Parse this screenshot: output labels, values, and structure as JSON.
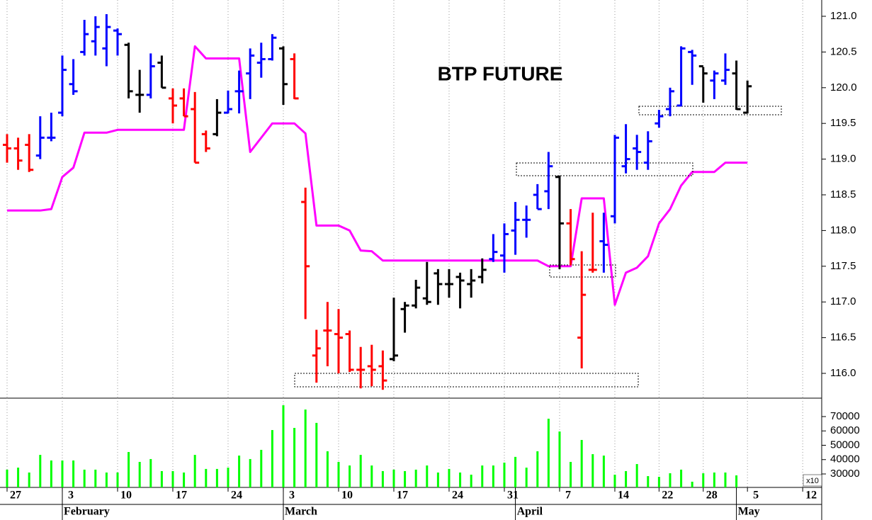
{
  "chart_data": [
    {
      "type": "ohlc",
      "title": "BTP FUTURE",
      "x": [
        0,
        1,
        2,
        3,
        4,
        5,
        6,
        7,
        8,
        9,
        10,
        11,
        12,
        13,
        14,
        15,
        16,
        17,
        18,
        19,
        20,
        21,
        22,
        23,
        24,
        25,
        26,
        27,
        28,
        29,
        30,
        31,
        32,
        33,
        34,
        35,
        36,
        37,
        38,
        39,
        40,
        41,
        42,
        43,
        44,
        45,
        46,
        47,
        48,
        49,
        50,
        51,
        52,
        53,
        54,
        55,
        56,
        57,
        58,
        59,
        60,
        61,
        62,
        63,
        64,
        65,
        66,
        67
      ],
      "open": [
        119.2,
        119.15,
        119.2,
        119.05,
        119.3,
        119.65,
        120.05,
        120.5,
        120.65,
        120.55,
        120.8,
        120.6,
        119.9,
        119.9,
        120.35,
        119.85,
        119.85,
        119.7,
        119.35,
        119.35,
        119.65,
        119.95,
        120.2,
        120.35,
        120.4,
        120.55,
        120.4,
        118.4,
        116.25,
        116.6,
        116.55,
        116.55,
        116.05,
        116.1,
        116.1,
        116.2,
        116.9,
        116.95,
        117.05,
        117.4,
        117.25,
        117.35,
        117.25,
        117.35,
        117.6,
        117.65,
        118.0,
        118.15,
        118.5,
        118.55,
        118.75,
        118.1,
        116.5,
        117.45,
        117.85,
        118.2,
        118.9,
        119.15,
        118.95,
        119.5,
        119.7,
        119.75,
        120.5,
        120.3,
        120.1,
        120.1,
        120.2,
        119.65
      ],
      "high": [
        119.35,
        119.3,
        119.35,
        119.6,
        119.65,
        120.45,
        120.4,
        120.95,
        121.0,
        121.03,
        120.83,
        120.63,
        120.25,
        120.48,
        120.45,
        119.99,
        119.99,
        119.94,
        119.4,
        119.84,
        119.96,
        120.24,
        120.55,
        120.63,
        120.75,
        120.58,
        120.48,
        118.6,
        116.61,
        117.0,
        116.9,
        116.6,
        116.37,
        116.4,
        116.32,
        117.06,
        117.0,
        117.31,
        117.56,
        117.46,
        117.46,
        117.41,
        117.46,
        117.61,
        117.95,
        118.1,
        118.4,
        118.35,
        118.65,
        119.1,
        118.77,
        118.3,
        117.71,
        118.25,
        118.25,
        119.34,
        119.49,
        119.34,
        119.39,
        119.69,
        120.0,
        120.58,
        120.53,
        120.29,
        120.24,
        120.48,
        120.38,
        120.1
      ],
      "low": [
        118.95,
        118.85,
        118.82,
        119.0,
        119.25,
        119.6,
        119.9,
        120.45,
        120.45,
        120.3,
        120.45,
        119.85,
        119.65,
        119.85,
        120.0,
        119.5,
        119.6,
        118.95,
        119.1,
        119.32,
        119.64,
        119.64,
        119.84,
        120.14,
        120.38,
        119.76,
        119.84,
        116.76,
        115.87,
        116.1,
        116.0,
        116.02,
        115.79,
        115.82,
        115.77,
        116.17,
        116.57,
        116.91,
        116.96,
        116.96,
        117.06,
        116.91,
        117.06,
        117.26,
        117.56,
        117.41,
        117.66,
        117.9,
        118.3,
        118.3,
        117.46,
        117.51,
        116.07,
        117.41,
        117.41,
        118.1,
        118.8,
        118.85,
        118.85,
        119.44,
        119.6,
        119.74,
        120.04,
        119.79,
        119.84,
        120.04,
        119.69,
        119.64
      ],
      "close": [
        119.15,
        118.98,
        118.85,
        119.3,
        119.3,
        120.25,
        119.95,
        120.75,
        120.85,
        120.85,
        120.75,
        119.95,
        119.9,
        120.3,
        120.0,
        119.75,
        119.6,
        118.95,
        119.15,
        119.65,
        119.7,
        119.95,
        120.45,
        120.4,
        120.7,
        120.05,
        119.85,
        117.5,
        116.35,
        116.6,
        116.5,
        116.05,
        116.05,
        116.05,
        115.9,
        116.25,
        116.95,
        117.2,
        117.0,
        117.25,
        117.25,
        117.3,
        117.3,
        117.45,
        117.7,
        117.95,
        118.15,
        118.15,
        118.3,
        118.9,
        118.1,
        117.6,
        117.1,
        117.45,
        117.8,
        119.3,
        119.0,
        119.1,
        119.25,
        119.6,
        119.95,
        120.55,
        120.45,
        120.2,
        120.2,
        120.25,
        119.7,
        120.02
      ],
      "colors": [
        "#ff0000",
        "#ff0000",
        "#ff0000",
        "#0000ff",
        "#0000ff",
        "#0000ff",
        "#0000ff",
        "#0000ff",
        "#0000ff",
        "#0000ff",
        "#0000ff",
        "#000000",
        "#000000",
        "#0000ff",
        "#000000",
        "#ff0000",
        "#ff0000",
        "#ff0000",
        "#ff0000",
        "#000000",
        "#0000ff",
        "#0000ff",
        "#0000ff",
        "#0000ff",
        "#0000ff",
        "#000000",
        "#ff0000",
        "#ff0000",
        "#ff0000",
        "#ff0000",
        "#ff0000",
        "#ff0000",
        "#ff0000",
        "#ff0000",
        "#ff0000",
        "#000000",
        "#000000",
        "#000000",
        "#000000",
        "#000000",
        "#000000",
        "#000000",
        "#000000",
        "#000000",
        "#0000ff",
        "#0000ff",
        "#0000ff",
        "#0000ff",
        "#0000ff",
        "#0000ff",
        "#000000",
        "#ff0000",
        "#ff0000",
        "#ff0000",
        "#0000ff",
        "#0000ff",
        "#0000ff",
        "#0000ff",
        "#0000ff",
        "#0000ff",
        "#0000ff",
        "#0000ff",
        "#0000ff",
        "#000000",
        "#0000ff",
        "#0000ff",
        "#000000",
        "#000000"
      ],
      "line": {
        "color": "#ff00ff",
        "values": [
          118.28,
          118.28,
          118.28,
          118.28,
          118.3,
          118.75,
          118.88,
          119.37,
          119.37,
          119.37,
          119.41,
          119.41,
          119.41,
          119.41,
          119.41,
          119.41,
          119.41,
          120.58,
          120.41,
          120.41,
          120.41,
          120.41,
          119.1,
          119.3,
          119.5,
          119.5,
          119.5,
          119.36,
          118.07,
          118.07,
          118.07,
          118.0,
          117.72,
          117.71,
          117.58,
          117.58,
          117.58,
          117.58,
          117.58,
          117.58,
          117.58,
          117.58,
          117.58,
          117.58,
          117.58,
          117.58,
          117.58,
          117.58,
          117.58,
          117.5,
          117.5,
          117.5,
          118.45,
          118.45,
          118.45,
          116.96,
          117.41,
          117.48,
          117.64,
          118.1,
          118.3,
          118.63,
          118.82,
          118.82,
          118.82,
          118.95,
          118.95,
          118.95
        ]
      },
      "xlim": [
        -0.64,
        73.72
      ],
      "ylim": [
        115.653,
        121.228
      ],
      "yticks": [
        {
          "value": 116,
          "label": "116.0"
        },
        {
          "value": 116.5,
          "label": "116.5"
        },
        {
          "value": 117,
          "label": "117.0"
        },
        {
          "value": 117.5,
          "label": "117.5"
        },
        {
          "value": 118,
          "label": "118.0"
        },
        {
          "value": 118.5,
          "label": "118.5"
        },
        {
          "value": 119,
          "label": "119.0"
        },
        {
          "value": 119.5,
          "label": "119.5"
        },
        {
          "value": 120,
          "label": "120.0"
        },
        {
          "value": 120.5,
          "label": "120.5"
        },
        {
          "value": 121,
          "label": "121.0"
        }
      ],
      "xticks": [
        0,
        5,
        10,
        15,
        20,
        25,
        30,
        35,
        40,
        45,
        50,
        55,
        59,
        63,
        67,
        72
      ]
    },
    {
      "type": "bar",
      "color": "#00ff00",
      "x": [
        0,
        1,
        2,
        3,
        4,
        5,
        6,
        7,
        8,
        9,
        10,
        11,
        12,
        13,
        14,
        15,
        16,
        17,
        18,
        19,
        20,
        21,
        22,
        23,
        24,
        25,
        26,
        27,
        28,
        29,
        30,
        31,
        32,
        33,
        34,
        35,
        36,
        37,
        38,
        39,
        40,
        41,
        42,
        43,
        44,
        45,
        46,
        47,
        48,
        49,
        50,
        51,
        52,
        53,
        54,
        55,
        56,
        57,
        58,
        59,
        60,
        61,
        62,
        63,
        64,
        65,
        66,
        67
      ],
      "values": [
        33000,
        34400,
        31000,
        43300,
        39400,
        39400,
        39400,
        33000,
        33000,
        31000,
        31000,
        45300,
        38400,
        40400,
        32000,
        32000,
        31000,
        43300,
        33500,
        33500,
        34400,
        42800,
        40400,
        46800,
        60600,
        77900,
        62100,
        74900,
        65600,
        45800,
        38400,
        35900,
        43300,
        35900,
        32000,
        33000,
        32000,
        33000,
        35900,
        31000,
        33500,
        31000,
        29500,
        35900,
        35900,
        37900,
        41900,
        34400,
        45800,
        68500,
        59600,
        38400,
        53700,
        43800,
        42800,
        29500,
        32000,
        36900,
        28500,
        28000,
        30500,
        33000,
        24600,
        30500,
        31000,
        31000,
        29000,
        null
      ],
      "xlim": [
        -0.64,
        73.72
      ],
      "ylim": [
        20620,
        82840
      ],
      "yticks": [
        30000,
        40000,
        50000,
        60000,
        70000
      ],
      "multiplier_label": "x10",
      "xticks": [
        {
          "value": 0,
          "label": "27"
        },
        {
          "value": 5,
          "label": "3"
        },
        {
          "value": 10,
          "label": "10"
        },
        {
          "value": 15,
          "label": "17"
        },
        {
          "value": 20,
          "label": "24"
        },
        {
          "value": 25,
          "label": "3"
        },
        {
          "value": 30,
          "label": "10"
        },
        {
          "value": 35,
          "label": "17"
        },
        {
          "value": 40,
          "label": "24"
        },
        {
          "value": 45,
          "label": "31"
        },
        {
          "value": 50,
          "label": "7"
        },
        {
          "value": 55,
          "label": "14"
        },
        {
          "value": 59,
          "label": "22"
        },
        {
          "value": 63,
          "label": "28"
        },
        {
          "value": 67,
          "label": "5"
        },
        {
          "value": 72,
          "label": "12"
        }
      ],
      "month_ticks": [
        {
          "value": 5,
          "label": "February"
        },
        {
          "value": 25,
          "label": "March"
        },
        {
          "value": 46,
          "label": "April"
        },
        {
          "value": 66,
          "label": "May"
        }
      ]
    }
  ]
}
